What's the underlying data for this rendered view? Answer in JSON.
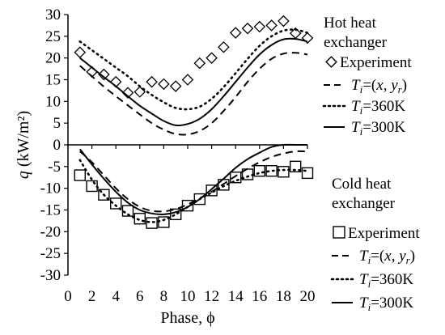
{
  "chart_data": {
    "type": "line",
    "xlabel": "Phase, ϕ",
    "ylabel_var": "q",
    "ylabel_unit": " (kW/m²)",
    "xlim": [
      0,
      20
    ],
    "ylim": [
      -30,
      30
    ],
    "x_ticks": [
      0,
      2,
      4,
      6,
      8,
      10,
      12,
      14,
      16,
      18,
      20
    ],
    "y_ticks": [
      30,
      25,
      20,
      15,
      10,
      5,
      0,
      -5,
      -10,
      -15,
      -20,
      -25,
      -30
    ],
    "grid": false,
    "legend_placement": "right",
    "series": [
      {
        "group": "hot",
        "kind": "experiment",
        "marker": "diamond",
        "color": "#000000",
        "x": [
          1,
          2,
          3,
          4,
          5,
          6,
          7,
          8,
          9,
          10,
          11,
          12,
          13,
          14,
          15,
          16,
          17,
          18,
          19,
          20
        ],
        "y": [
          21.3,
          16.8,
          16.2,
          14.5,
          12.0,
          12.2,
          14.5,
          14.0,
          13.5,
          15.0,
          18.8,
          20.0,
          22.5,
          25.8,
          26.8,
          27.2,
          27.5,
          28.5,
          25.7,
          24.6
        ]
      },
      {
        "group": "hot",
        "kind": "dashed",
        "x": [
          1,
          2,
          3,
          4,
          5,
          6,
          7,
          8,
          9,
          10,
          11,
          12,
          13,
          14,
          15,
          16,
          17,
          18,
          19,
          20
        ],
        "y": [
          18.2,
          15.8,
          13.4,
          11.2,
          9.1,
          7.0,
          5.0,
          3.5,
          2.5,
          2.4,
          3.2,
          5.0,
          7.8,
          11.0,
          14.5,
          17.5,
          19.8,
          21.0,
          21.2,
          20.8
        ]
      },
      {
        "group": "hot",
        "kind": "dotted",
        "x": [
          1,
          2,
          3,
          4,
          5,
          6,
          7,
          8,
          9,
          10,
          11,
          12,
          13,
          14,
          15,
          16,
          17,
          18,
          19,
          20
        ],
        "y": [
          23.8,
          21.8,
          19.8,
          17.8,
          15.8,
          13.5,
          11.5,
          9.8,
          8.5,
          8.2,
          8.8,
          10.6,
          13.3,
          16.5,
          19.8,
          22.8,
          25.0,
          26.3,
          26.5,
          25.8
        ]
      },
      {
        "group": "hot",
        "kind": "solid",
        "x": [
          1,
          2,
          3,
          4,
          5,
          6,
          7,
          8,
          9,
          10,
          11,
          12,
          13,
          14,
          15,
          16,
          17,
          18,
          19,
          20
        ],
        "y": [
          20.0,
          17.8,
          15.6,
          13.5,
          11.2,
          9.0,
          7.2,
          5.5,
          4.5,
          4.8,
          6.0,
          8.2,
          11.2,
          14.5,
          17.8,
          20.8,
          23.0,
          24.3,
          24.4,
          23.8
        ]
      },
      {
        "group": "cold",
        "kind": "experiment",
        "marker": "square",
        "color": "#000000",
        "x": [
          1,
          2,
          3,
          4,
          5,
          6,
          7,
          8,
          9,
          10,
          11,
          12,
          13,
          14,
          15,
          16,
          17,
          18,
          19,
          20
        ],
        "y": [
          -7.0,
          -9.5,
          -11.5,
          -13.5,
          -15.2,
          -17.0,
          -18.0,
          -17.8,
          -16.0,
          -14.0,
          -12.5,
          -10.5,
          -9.2,
          -7.5,
          -6.8,
          -6.0,
          -6.0,
          -6.2,
          -5.0,
          -6.5
        ]
      },
      {
        "group": "cold",
        "kind": "dashed",
        "x": [
          1,
          2,
          3,
          4,
          5,
          6,
          7,
          8,
          9,
          10,
          11,
          12,
          13,
          14,
          15,
          16,
          17,
          18,
          19,
          20
        ],
        "y": [
          -1.5,
          -4.0,
          -7.0,
          -10.0,
          -12.5,
          -14.3,
          -15.2,
          -15.3,
          -14.8,
          -13.7,
          -12.3,
          -10.8,
          -9.0,
          -7.2,
          -5.5,
          -4.0,
          -2.8,
          -2.0,
          -1.5,
          -1.5
        ]
      },
      {
        "group": "cold",
        "kind": "dotted",
        "x": [
          1,
          2,
          3,
          4,
          5,
          6,
          7,
          8,
          9,
          10,
          11,
          12,
          13,
          14,
          15,
          16,
          17,
          18,
          19,
          20
        ],
        "y": [
          -3.5,
          -8.0,
          -11.5,
          -14.0,
          -16.0,
          -17.3,
          -17.8,
          -17.3,
          -16.0,
          -14.3,
          -12.5,
          -11.0,
          -9.5,
          -8.3,
          -7.3,
          -6.5,
          -6.0,
          -5.8,
          -5.8,
          -6.0
        ]
      },
      {
        "group": "cold",
        "kind": "solid",
        "x": [
          1,
          2,
          3,
          4,
          5,
          6,
          7,
          8,
          9,
          10,
          11,
          12,
          13,
          14,
          15,
          16,
          17,
          18,
          19,
          20
        ],
        "y": [
          -1.0,
          -4.5,
          -7.8,
          -10.8,
          -13.3,
          -15.0,
          -15.8,
          -16.0,
          -15.5,
          -14.3,
          -12.5,
          -10.2,
          -7.8,
          -5.3,
          -3.3,
          -1.8,
          -0.5,
          0.0,
          0.0,
          0.0
        ]
      }
    ]
  },
  "legend_hot": {
    "title_line1": "Hot heat",
    "title_line2": "exchanger",
    "experiment": "Experiment",
    "ti_var": "T",
    "ti_sub": "i",
    "eq": "=",
    "entry1_paren_open": "(",
    "entry1_x": "x",
    "entry1_comma": ", ",
    "entry1_y": "y",
    "entry1_ysub": "r",
    "entry1_paren_close": ")",
    "entry2_val": "360K",
    "entry3_val": "300K"
  },
  "legend_cold": {
    "title_line1": "Cold heat",
    "title_line2": "exchanger",
    "experiment": "Experiment",
    "ti_var": "T",
    "ti_sub": "i",
    "eq": "=",
    "entry1_paren_open": "(",
    "entry1_x": "x",
    "entry1_comma": ", ",
    "entry1_y": "y",
    "entry1_ysub": "r",
    "entry1_paren_close": ")",
    "entry2_val": "360K",
    "entry3_val": "300K"
  }
}
